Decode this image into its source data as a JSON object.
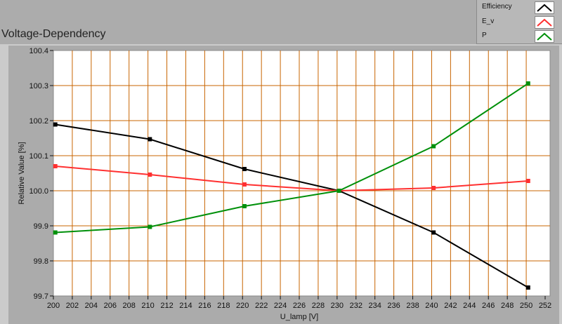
{
  "chart_data": {
    "type": "line",
    "title": "Voltage-Dependency",
    "xlabel": "U_lamp [V]",
    "ylabel": "Relative Value [%]",
    "xlim": [
      200,
      252
    ],
    "ylim": [
      99.7,
      100.4
    ],
    "xticks": [
      200,
      202,
      204,
      206,
      208,
      210,
      212,
      214,
      216,
      218,
      220,
      222,
      224,
      226,
      228,
      230,
      232,
      234,
      236,
      238,
      240,
      242,
      244,
      246,
      248,
      250,
      252
    ],
    "yticks": [
      "99.7",
      "99.8",
      "99.9",
      "100.0",
      "100.1",
      "100.2",
      "100.3",
      "100.4"
    ],
    "grid": true,
    "grid_color": "#c86400",
    "legend_placement": "top-right",
    "x": [
      200.2,
      210.2,
      220.2,
      230.2,
      240.2,
      250.2
    ],
    "series": [
      {
        "name": "Efficiency",
        "color": "#000000",
        "values": [
          100.189,
          100.147,
          100.062,
          100.0,
          99.881,
          99.724
        ]
      },
      {
        "name": "E_v",
        "color": "#ff3030",
        "values": [
          100.07,
          100.046,
          100.018,
          100.0,
          100.008,
          100.028
        ]
      },
      {
        "name": "P",
        "color": "#00900a",
        "values": [
          99.881,
          99.897,
          99.956,
          100.0,
          100.127,
          100.306
        ]
      }
    ]
  }
}
